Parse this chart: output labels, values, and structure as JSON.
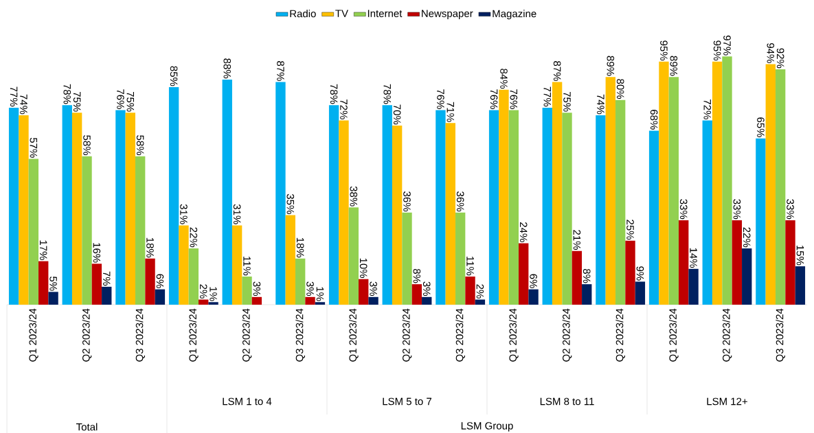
{
  "chart_data": {
    "type": "bar",
    "legend": "top",
    "categories": [
      "Q1 2023/24",
      "Q2 2023/24",
      "Q3 2023/24",
      "Q1 2023/24",
      "Q2 2023/24",
      "Q3 2023/24",
      "Q1 2023/24",
      "Q2 2023/24",
      "Q3 2023/24",
      "Q1 2023/24",
      "Q2 2023/24",
      "Q3 2023/24",
      "Q1 2023/24",
      "Q2 2023/24",
      "Q3 2023/24"
    ],
    "series": [
      {
        "name": "Radio",
        "color": "#00b0f0",
        "values": [
          77,
          78,
          76,
          85,
          88,
          87,
          78,
          78,
          76,
          76,
          77,
          74,
          68,
          72,
          65
        ],
        "value_labels": [
          "77%",
          "78%",
          "76%",
          "85%",
          "88%",
          "87%",
          "78%",
          "78%",
          "76%",
          "76%",
          "77%",
          "74%",
          "68%",
          "72%",
          "65%"
        ]
      },
      {
        "name": "TV",
        "color": "#ffc000",
        "values": [
          74,
          75,
          75,
          31,
          31,
          35,
          72,
          70,
          71,
          84,
          87,
          89,
          95,
          95,
          94
        ],
        "value_labels": [
          "74%",
          "75%",
          "75%",
          "31%",
          "31%",
          "35%",
          "72%",
          "70%",
          "71%",
          "84%",
          "87%",
          "89%",
          "95%",
          "95%",
          "94%"
        ]
      },
      {
        "name": "Internet",
        "color": "#92d050",
        "values": [
          57,
          58,
          58,
          22,
          11,
          18,
          38,
          36,
          36,
          76,
          75,
          80,
          89,
          97,
          92
        ],
        "value_labels": [
          "57%",
          "58%",
          "58%",
          "22%",
          "11%",
          "18%",
          "38%",
          "36%",
          "36%",
          "76%",
          "75%",
          "80%",
          "89%",
          "97%",
          "92%"
        ]
      },
      {
        "name": "Newspaper",
        "color": "#c00000",
        "values": [
          17,
          16,
          18,
          2,
          3,
          3,
          10,
          8,
          11,
          24,
          21,
          25,
          33,
          33,
          33
        ],
        "value_labels": [
          "17%",
          "16%",
          "18%",
          "2%",
          "3%",
          "3%",
          "10%",
          "8%",
          "11%",
          "24%",
          "21%",
          "25%",
          "33%",
          "33%",
          "33%"
        ]
      },
      {
        "name": "Magazine",
        "color": "#002060",
        "values": [
          5,
          7,
          6,
          1,
          null,
          1,
          3,
          3,
          2,
          6,
          8,
          9,
          14,
          22,
          15
        ],
        "value_labels": [
          "5%",
          "7%",
          "6%",
          "1%",
          null,
          "1%",
          "3%",
          "3%",
          "2%",
          "6%",
          "8%",
          "9%",
          "14%",
          "22%",
          "15%"
        ]
      }
    ],
    "annotations": [
      "Total",
      "LSM 1 to 4",
      "LSM 5 to 7",
      "LSM 8 to 11",
      "LSM 12+",
      "LSM Group"
    ]
  }
}
